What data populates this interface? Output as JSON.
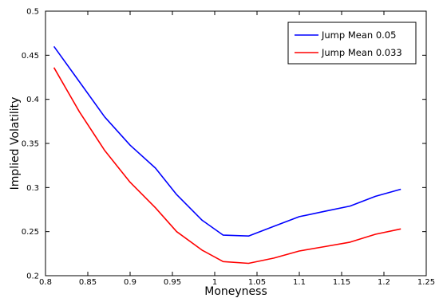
{
  "chart_data": {
    "type": "line",
    "title": "",
    "xlabel": "Moneyness",
    "ylabel": "Implied Volatility",
    "xlim": [
      0.8,
      1.25
    ],
    "ylim": [
      0.2,
      0.5
    ],
    "xticks": [
      "0.8",
      "0.85",
      "0.9",
      "0.95",
      "1",
      "1.05",
      "1.1",
      "1.15",
      "1.2",
      "1.25"
    ],
    "yticks": [
      "0.2",
      "0.25",
      "0.3",
      "0.35",
      "0.4",
      "0.45",
      "0.5"
    ],
    "xtick_values": [
      0.8,
      0.85,
      0.9,
      0.95,
      1.0,
      1.05,
      1.1,
      1.15,
      1.2,
      1.25
    ],
    "ytick_values": [
      0.2,
      0.25,
      0.3,
      0.35,
      0.4,
      0.45,
      0.5
    ],
    "grid": false,
    "legend_position": "top-right",
    "series": [
      {
        "name": "Jump Mean 0.05",
        "color": "#0000ff",
        "x": [
          0.81,
          0.84,
          0.87,
          0.9,
          0.93,
          0.955,
          0.985,
          1.01,
          1.04,
          1.07,
          1.1,
          1.13,
          1.16,
          1.19,
          1.22
        ],
        "y": [
          0.46,
          0.42,
          0.38,
          0.348,
          0.322,
          0.292,
          0.263,
          0.246,
          0.245,
          0.256,
          0.267,
          0.273,
          0.279,
          0.29,
          0.298
        ]
      },
      {
        "name": "Jump Mean 0.033",
        "color": "#ff0000",
        "x": [
          0.81,
          0.84,
          0.87,
          0.9,
          0.93,
          0.955,
          0.985,
          1.01,
          1.04,
          1.07,
          1.1,
          1.13,
          1.16,
          1.19,
          1.22
        ],
        "y": [
          0.436,
          0.386,
          0.342,
          0.306,
          0.277,
          0.25,
          0.229,
          0.216,
          0.214,
          0.22,
          0.228,
          0.233,
          0.238,
          0.247,
          0.253
        ]
      }
    ]
  }
}
